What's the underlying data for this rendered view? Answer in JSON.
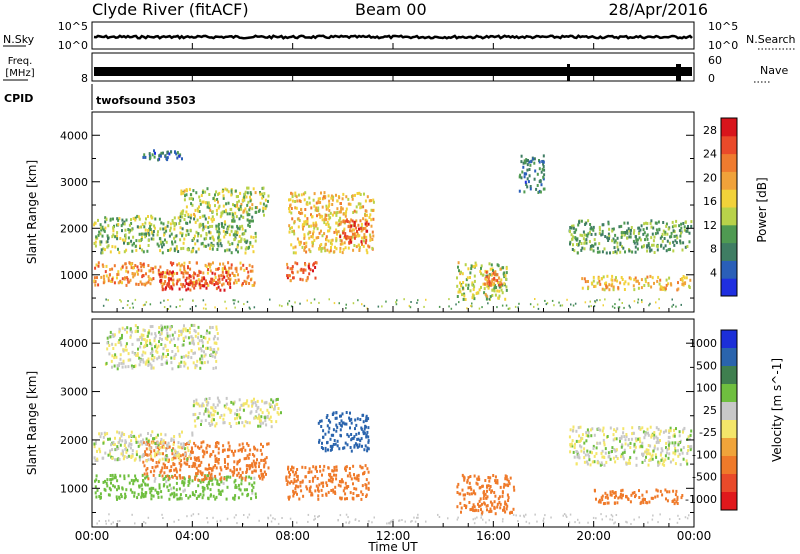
{
  "header": {
    "title": "Clyde River (fitACF)",
    "beam": "Beam 00",
    "date": "28/Apr/2016"
  },
  "top_panel_labels": {
    "nsky": "N.Sky",
    "nsearch": "N.Search",
    "nsky_tick_top": "10^5",
    "nsky_tick_bottom": "10^0",
    "nsearch_tick_top": "10^5",
    "nsearch_tick_bottom": "10^0",
    "freq_line1": "Freq.",
    "freq_line2": "[MHz]",
    "freq_tick": "8",
    "nave": "Nave",
    "nave_tick_top": "60",
    "nave_tick_bottom": "0",
    "cpid": "CPID",
    "cpid_value": "twofsound 3503"
  },
  "x_axis": {
    "label": "Time UT",
    "ticks": [
      "00:00",
      "04:00",
      "08:00",
      "12:00",
      "16:00",
      "20:00",
      "00:00"
    ]
  },
  "colors": {
    "power_scale": [
      "#1f2fe0",
      "#2a5fb8",
      "#3f7d63",
      "#4f9a52",
      "#b8d24a",
      "#f2d23a",
      "#f0a23a",
      "#ef7b2f",
      "#ea4a2a",
      "#d8151c"
    ],
    "velocity_scale": [
      "#1c2fd8",
      "#2a64ad",
      "#3f7f4f",
      "#6fbf3f",
      "#c8c8c8",
      "#f4e66a",
      "#f0a43a",
      "#ef7a2a",
      "#e94a2a",
      "#e0181c"
    ]
  },
  "chart_data": [
    {
      "type": "line",
      "title": "",
      "xlabel": "",
      "ylabel": "N.Sky",
      "xlim": [
        0,
        24
      ],
      "ylim": [
        "10^0",
        "10^5"
      ],
      "series": [
        {
          "name": "N.Sky",
          "values": "near-constant high level across the day"
        }
      ]
    },
    {
      "type": "heatmap",
      "title": "",
      "xlabel": "Time UT",
      "ylabel": "Slant Range [km]",
      "x_ticks": [
        "00:00",
        "04:00",
        "08:00",
        "12:00",
        "16:00",
        "20:00",
        "00:00"
      ],
      "y_ticks": [
        1000,
        2000,
        3000,
        4000
      ],
      "ylim": [
        200,
        4500
      ],
      "colorbar": {
        "label": "Power [dB]",
        "ticks": [
          4,
          8,
          12,
          16,
          20,
          24,
          28
        ],
        "range": [
          0,
          30
        ]
      },
      "regions": [
        {
          "t_start": 0.0,
          "t_end": 6.5,
          "range_start": 800,
          "range_end": 1300,
          "value": 22
        },
        {
          "t_start": 2.6,
          "t_end": 5.5,
          "range_start": 700,
          "range_end": 1100,
          "value": 28
        },
        {
          "t_start": 0.0,
          "t_end": 6.5,
          "range_start": 1500,
          "range_end": 2300,
          "value": 12
        },
        {
          "t_start": 3.5,
          "t_end": 7.0,
          "range_start": 2300,
          "range_end": 2900,
          "value": 14
        },
        {
          "t_start": 7.7,
          "t_end": 9.0,
          "range_start": 900,
          "range_end": 1300,
          "value": 25
        },
        {
          "t_start": 7.8,
          "t_end": 11.2,
          "range_start": 1500,
          "range_end": 2800,
          "value": 18
        },
        {
          "t_start": 9.8,
          "t_end": 11.0,
          "range_start": 1700,
          "range_end": 2200,
          "value": 26
        },
        {
          "t_start": 14.5,
          "t_end": 16.5,
          "range_start": 500,
          "range_end": 1300,
          "value": 14
        },
        {
          "t_start": 15.6,
          "t_end": 16.3,
          "range_start": 800,
          "range_end": 1100,
          "value": 22
        },
        {
          "t_start": 19.5,
          "t_end": 24.0,
          "range_start": 700,
          "range_end": 1000,
          "value": 18
        },
        {
          "t_start": 19.0,
          "t_end": 24.0,
          "range_start": 1500,
          "range_end": 2200,
          "value": 10
        },
        {
          "t_start": 17.0,
          "t_end": 18.0,
          "range_start": 2800,
          "range_end": 3600,
          "value": 6
        },
        {
          "t_start": 2.0,
          "t_end": 3.6,
          "range_start": 3500,
          "range_end": 3700,
          "value": 5
        }
      ]
    },
    {
      "type": "heatmap",
      "title": "",
      "xlabel": "Time UT",
      "ylabel": "Slant Range [km]",
      "x_ticks": [
        "00:00",
        "04:00",
        "08:00",
        "12:00",
        "16:00",
        "20:00",
        "00:00"
      ],
      "y_ticks": [
        1000,
        2000,
        3000,
        4000
      ],
      "ylim": [
        200,
        4500
      ],
      "colorbar": {
        "label": "Velocity [m s^-1]",
        "ticks": [
          1000,
          500,
          100,
          25,
          -25,
          -100,
          -500,
          -1000
        ]
      },
      "regions": [
        {
          "t_start": 0.0,
          "t_end": 6.5,
          "range_start": 800,
          "range_end": 1300,
          "value": 150
        },
        {
          "t_start": 2.0,
          "t_end": 7.0,
          "range_start": 1200,
          "range_end": 2000,
          "value": -300
        },
        {
          "t_start": 0.0,
          "t_end": 4.0,
          "range_start": 1600,
          "range_end": 2200,
          "value": 0
        },
        {
          "t_start": 4.0,
          "t_end": 7.5,
          "range_start": 2300,
          "range_end": 2900,
          "value": 0
        },
        {
          "t_start": 7.7,
          "t_end": 11.0,
          "range_start": 800,
          "range_end": 1500,
          "value": -300
        },
        {
          "t_start": 9.0,
          "t_end": 11.0,
          "range_start": 1800,
          "range_end": 2600,
          "value": 600
        },
        {
          "t_start": 14.5,
          "t_end": 16.8,
          "range_start": 500,
          "range_end": 1300,
          "value": -300
        },
        {
          "t_start": 19.0,
          "t_end": 24.0,
          "range_start": 1500,
          "range_end": 2300,
          "value": 0
        },
        {
          "t_start": 20.0,
          "t_end": 23.5,
          "range_start": 700,
          "range_end": 1000,
          "value": -200
        },
        {
          "t_start": 0.5,
          "t_end": 5.0,
          "range_start": 3500,
          "range_end": 4400,
          "value": 0
        }
      ]
    }
  ]
}
